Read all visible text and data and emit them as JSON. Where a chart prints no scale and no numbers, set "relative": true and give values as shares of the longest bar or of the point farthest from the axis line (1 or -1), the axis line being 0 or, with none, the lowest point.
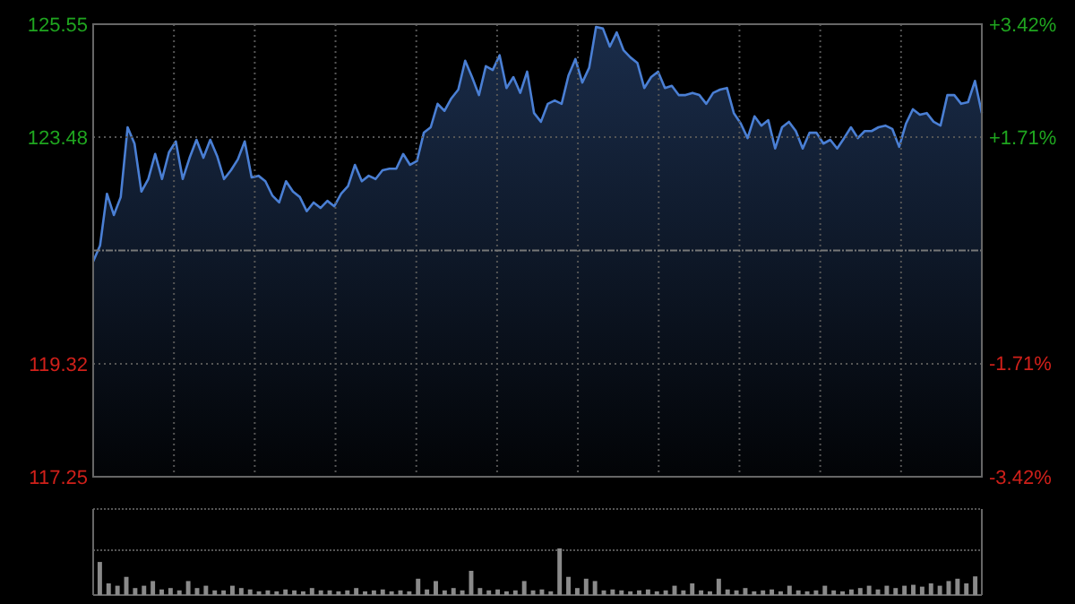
{
  "chart_data": [
    {
      "type": "area",
      "categories": [
        null,
        null,
        null,
        null,
        null,
        null,
        null,
        null,
        null,
        null,
        null,
        null,
        null,
        null,
        null,
        null,
        null,
        null,
        null,
        null,
        null,
        null,
        null,
        null,
        null,
        null,
        null,
        null,
        null,
        null,
        null,
        null,
        null,
        null,
        null,
        null,
        null,
        null,
        null,
        null,
        null,
        null,
        null,
        null,
        null,
        null,
        null,
        null,
        null,
        null,
        null,
        null,
        null,
        null,
        null,
        null,
        null,
        null,
        null,
        null,
        null,
        null,
        null,
        null,
        null,
        null,
        null,
        null,
        null,
        null,
        null,
        null,
        null,
        null,
        null,
        null,
        null,
        null,
        null,
        null,
        null,
        null,
        null,
        null,
        null,
        null,
        null,
        null,
        null,
        null,
        null,
        null,
        null,
        null,
        null,
        null,
        null,
        null,
        null,
        null,
        null,
        null,
        null,
        null,
        null,
        null,
        null,
        null,
        null,
        null,
        null,
        null,
        null,
        null,
        null,
        null,
        null,
        null,
        null,
        null,
        null,
        null,
        null,
        null,
        null,
        null,
        null,
        null,
        null,
        null
      ],
      "series": [
        {
          "color": "#4a7fd4",
          "values": [
            121.2,
            121.49,
            122.44,
            122.05,
            122.38,
            123.66,
            123.36,
            122.48,
            122.71,
            123.17,
            122.71,
            123.2,
            123.4,
            122.71,
            123.1,
            123.43,
            123.1,
            123.43,
            123.13,
            122.71,
            122.87,
            123.07,
            123.4,
            122.74,
            122.77,
            122.67,
            122.41,
            122.28,
            122.67,
            122.48,
            122.38,
            122.12,
            122.28,
            122.18,
            122.31,
            122.21,
            122.44,
            122.58,
            122.97,
            122.67,
            122.77,
            122.71,
            122.87,
            122.9,
            122.9,
            123.17,
            122.97,
            123.04,
            123.56,
            123.66,
            124.09,
            123.96,
            124.19,
            124.35,
            124.88,
            124.58,
            124.25,
            124.78,
            124.71,
            124.98,
            124.38,
            124.58,
            124.29,
            124.68,
            123.92,
            123.76,
            124.09,
            124.15,
            124.09,
            124.61,
            124.91,
            124.48,
            124.75,
            125.5,
            125.47,
            125.14,
            125.4,
            125.07,
            124.94,
            124.84,
            124.38,
            124.58,
            124.68,
            124.38,
            124.42,
            124.25,
            124.25,
            124.29,
            124.25,
            124.09,
            124.29,
            124.35,
            124.38,
            123.92,
            123.73,
            123.46,
            123.86,
            123.69,
            123.79,
            123.27,
            123.66,
            123.76,
            123.59,
            123.27,
            123.56,
            123.56,
            123.36,
            123.43,
            123.27,
            123.46,
            123.66,
            123.46,
            123.59,
            123.59,
            123.66,
            123.69,
            123.63,
            123.3,
            123.73,
            123.99,
            123.89,
            123.92,
            123.76,
            123.69,
            124.25,
            124.25,
            124.09,
            124.12,
            124.51,
            123.92
          ]
        }
      ],
      "ylim": [
        117.25,
        125.55
      ],
      "yticks": [
        125.55,
        123.48,
        119.32,
        117.25
      ],
      "ref_lines": [
        {
          "axis": "y",
          "value": 121.4,
          "color": "#777777",
          "line_style": "dashed"
        }
      ],
      "y2lim": [
        -3.42,
        3.42
      ],
      "y2ticks": [
        {
          "value": 3.42,
          "label": "+3.42%"
        },
        {
          "value": 1.71,
          "label": "+1.71%"
        },
        {
          "value": -1.71,
          "label": "-1.71%"
        },
        {
          "value": -3.42,
          "label": "-3.42%"
        }
      ],
      "grid": true,
      "tick_labels": "y"
    },
    {
      "type": "bar",
      "relative": true,
      "color": "#8a8a8a",
      "categories": [
        null,
        null,
        null,
        null,
        null,
        null,
        null,
        null,
        null,
        null,
        null,
        null,
        null,
        null,
        null,
        null,
        null,
        null,
        null,
        null,
        null,
        null,
        null,
        null,
        null,
        null,
        null,
        null,
        null,
        null,
        null,
        null,
        null,
        null,
        null,
        null,
        null,
        null,
        null,
        null,
        null,
        null,
        null,
        null,
        null,
        null,
        null,
        null,
        null,
        null,
        null,
        null,
        null,
        null,
        null,
        null,
        null,
        null,
        null,
        null,
        null,
        null,
        null,
        null,
        null,
        null,
        null,
        null,
        null,
        null,
        null,
        null,
        null,
        null,
        null,
        null,
        null,
        null,
        null,
        null,
        null,
        null,
        null,
        null,
        null,
        null,
        null,
        null,
        null,
        null,
        null,
        null,
        null,
        null,
        null,
        null,
        null,
        null,
        null,
        null
      ],
      "values": [
        0.71,
        0.25,
        0.2,
        0.39,
        0.15,
        0.2,
        0.3,
        0.12,
        0.15,
        0.1,
        0.3,
        0.15,
        0.2,
        0.1,
        0.1,
        0.2,
        0.15,
        0.12,
        0.08,
        0.1,
        0.08,
        0.12,
        0.1,
        0.08,
        0.15,
        0.1,
        0.1,
        0.08,
        0.1,
        0.15,
        0.08,
        0.1,
        0.12,
        0.08,
        0.1,
        0.08,
        0.35,
        0.12,
        0.3,
        0.1,
        0.15,
        0.1,
        0.52,
        0.15,
        0.1,
        0.12,
        0.08,
        0.1,
        0.3,
        0.1,
        0.12,
        0.08,
        1,
        0.39,
        0.15,
        0.35,
        0.3,
        0.1,
        0.12,
        0.1,
        0.08,
        0.1,
        0.12,
        0.08,
        0.1,
        0.2,
        0.1,
        0.25,
        0.1,
        0.08,
        0.35,
        0.12,
        0.1,
        0.15,
        0.08,
        0.1,
        0.12,
        0.08,
        0.2,
        0.1,
        0.08,
        0.1,
        0.2,
        0.1,
        0.08,
        0.12,
        0.15,
        0.2,
        0.12,
        0.2,
        0.15,
        0.2,
        0.22,
        0.18,
        0.25,
        0.2,
        0.3,
        0.35,
        0.25,
        0.4
      ]
    }
  ]
}
